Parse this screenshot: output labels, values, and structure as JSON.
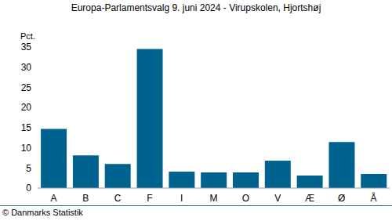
{
  "chart_data": {
    "type": "bar",
    "title": "Europa-Parlamentsvalg 9. juni 2024 - Virupskolen, Hjortshøj",
    "y_label": "Pct.",
    "source": "© Danmarks Statistik",
    "categories": [
      "A",
      "B",
      "C",
      "F",
      "I",
      "M",
      "O",
      "V",
      "Æ",
      "Ø",
      "Å"
    ],
    "values": [
      14.7,
      8.1,
      6.0,
      34.5,
      4.1,
      3.9,
      3.9,
      6.8,
      3.1,
      11.4,
      3.5
    ],
    "color": "#00628f",
    "ylim": [
      0,
      35
    ],
    "yticks": [
      0,
      5,
      10,
      15,
      20,
      25,
      30,
      35
    ],
    "grid": false
  }
}
